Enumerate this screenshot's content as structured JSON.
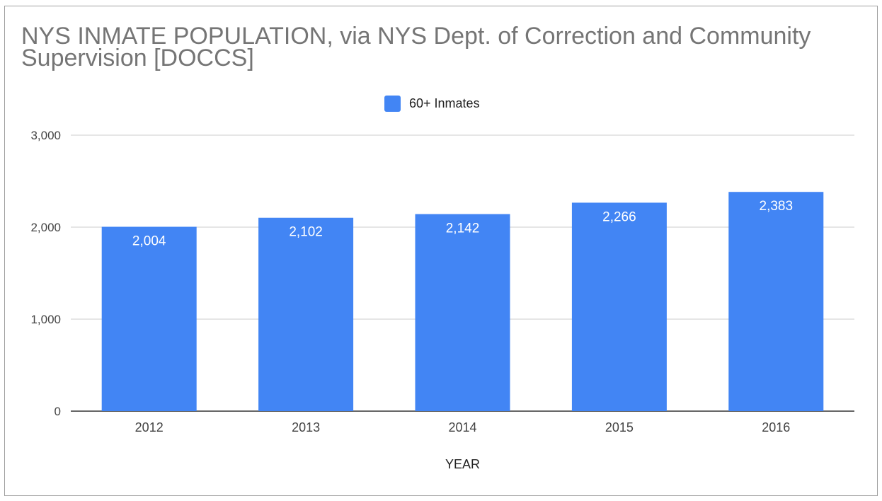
{
  "chart_data": {
    "type": "bar",
    "title": "NYS INMATE POPULATION, via NYS Dept. of Correction and Community Supervision [DOCCS]",
    "xlabel": "YEAR",
    "ylabel": "",
    "categories": [
      "2012",
      "2013",
      "2014",
      "2015",
      "2016"
    ],
    "series": [
      {
        "name": "60+ Inmates",
        "values": [
          2004,
          2102,
          2142,
          2266,
          2383
        ]
      }
    ],
    "data_labels": [
      "2,004",
      "2,102",
      "2,142",
      "2,266",
      "2,383"
    ],
    "ylim": [
      0,
      3000
    ],
    "yticks": [
      {
        "value": 0,
        "label": "0"
      },
      {
        "value": 1000,
        "label": "1,000"
      },
      {
        "value": 2000,
        "label": "2,000"
      },
      {
        "value": 3000,
        "label": "3,000"
      }
    ],
    "grid": true,
    "legend_position": "top",
    "colors": {
      "bar": "#4285f4",
      "grid": "#cccccc",
      "axis": "#333333"
    }
  }
}
